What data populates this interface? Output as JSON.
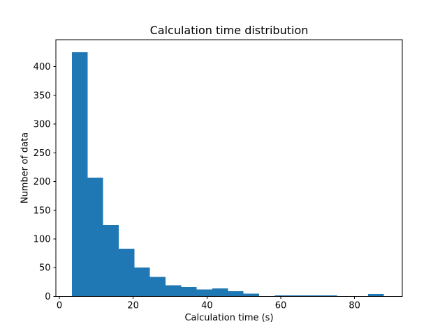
{
  "chart_data": {
    "type": "bar",
    "kind": "histogram",
    "title": "Calculation time distribution",
    "xlabel": "Calculation time (s)",
    "ylabel": "Number of data",
    "bin_edges": [
      3.41,
      7.64,
      11.86,
      16.09,
      20.31,
      24.54,
      28.76,
      32.99,
      37.21,
      41.44,
      45.66,
      49.89,
      54.11,
      58.34,
      62.56,
      66.79,
      71.01,
      75.24,
      79.46,
      83.69,
      87.91
    ],
    "counts": [
      425,
      207,
      124,
      83,
      50,
      34,
      19,
      16,
      12,
      14,
      9,
      5,
      0,
      2,
      2,
      2,
      2,
      0,
      0,
      4
    ],
    "x_ticks": [
      0,
      20,
      40,
      60,
      80
    ],
    "y_ticks": [
      0,
      50,
      100,
      150,
      200,
      250,
      300,
      350,
      400
    ],
    "xlim": [
      -0.95,
      92.93
    ],
    "ylim": [
      0,
      447
    ],
    "bar_color": "#1f77b4",
    "axis_color": "#000000",
    "background_color": "#ffffff",
    "grid": false,
    "legend": null
  }
}
